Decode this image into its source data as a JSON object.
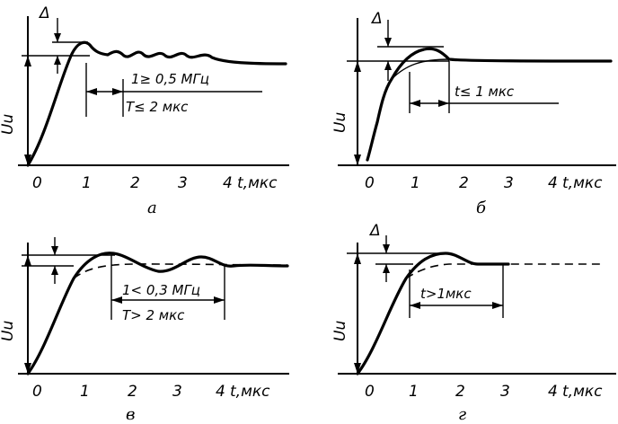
{
  "symbols": {
    "delta": "Δ",
    "u_axis": "Uu",
    "time_axis": "t,мкс"
  },
  "ticks": [
    "0",
    "1",
    "2",
    "3",
    "4"
  ],
  "panels": [
    {
      "caption": "а",
      "ann1": "1≥ 0,5 МГц",
      "ann2": "T≤ 2 мкс"
    },
    {
      "caption": "б",
      "ann1": "t≤ 1 мкс"
    },
    {
      "caption": "в",
      "ann1": "1< 0,3 МГц",
      "ann2": "T> 2 мкс"
    },
    {
      "caption": "г",
      "ann1": "t>1мкс"
    }
  ]
}
